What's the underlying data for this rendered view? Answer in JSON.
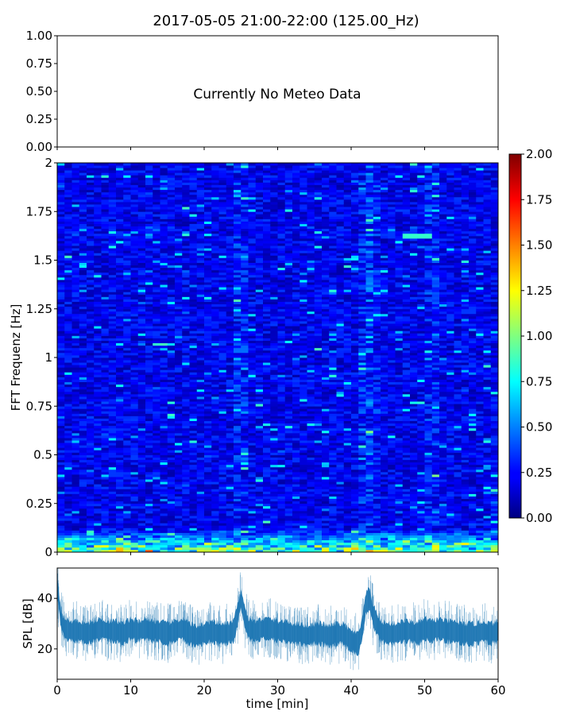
{
  "title": "2017-05-05 21:00-22:00 (125.00_Hz)",
  "chart_data": [
    {
      "type": "line",
      "panel": "meteo",
      "message": "Currently No Meteo Data",
      "ylim": [
        0,
        1
      ],
      "yticks": [
        "0.00",
        "0.25",
        "0.50",
        "0.75",
        "1.00"
      ],
      "xlim": [
        0,
        60
      ],
      "series": []
    },
    {
      "type": "heatmap",
      "panel": "spectrogram",
      "ylabel": "FFT Frequenz [Hz]",
      "xlim": [
        0,
        60
      ],
      "ylim": [
        0,
        2
      ],
      "yticks": [
        "0",
        "0.25",
        "0.5",
        "0.75",
        "1",
        "1.25",
        "1.5",
        "1.75",
        "2"
      ],
      "colorbar": {
        "range": [
          0,
          2
        ],
        "ticks": [
          "0.00",
          "0.25",
          "0.50",
          "0.75",
          "1.00",
          "1.25",
          "1.50",
          "1.75",
          "2.00"
        ],
        "colormap": "jet"
      },
      "features": {
        "background_level": 0.22,
        "low_freq_band_hz": [
          0,
          0.12
        ],
        "low_freq_level": 0.9,
        "bright_time_minutes": [
          25,
          42,
          43,
          51
        ],
        "bright_line": {
          "t_start": 47,
          "t_end": 51,
          "freq": 1.63,
          "value": 0.85
        }
      }
    },
    {
      "type": "line",
      "panel": "spl",
      "ylabel": "SPL [dB]",
      "xlabel": "time [min]",
      "xlim": [
        0,
        60
      ],
      "ylim": [
        8,
        52
      ],
      "yticks": [
        "20",
        "40"
      ],
      "xticks": [
        "0",
        "10",
        "20",
        "30",
        "40",
        "50",
        "60"
      ],
      "color": "#1f77b4",
      "series": [
        {
          "x": [
            0,
            0.5,
            1,
            2,
            3,
            4,
            5,
            6,
            7,
            8,
            9,
            10,
            11,
            12,
            13,
            14,
            15,
            16,
            17,
            18,
            19,
            20,
            21,
            22,
            23,
            24,
            24.5,
            25,
            25.5,
            26,
            27,
            28,
            29,
            30,
            31,
            32,
            33,
            34,
            35,
            36,
            37,
            38,
            39,
            40,
            41,
            41.5,
            42,
            42.5,
            43,
            44,
            45,
            46,
            47,
            48,
            49,
            50,
            51,
            52,
            53,
            54,
            55,
            56,
            57,
            58,
            59,
            60
          ],
          "values": [
            45,
            32,
            28,
            27,
            27,
            26,
            27,
            28,
            27,
            27,
            26,
            28,
            27,
            28,
            27,
            27,
            26,
            27,
            28,
            26,
            25,
            26,
            27,
            26,
            26,
            27,
            33,
            40,
            33,
            28,
            27,
            28,
            28,
            27,
            27,
            26,
            26,
            25,
            26,
            26,
            25,
            26,
            26,
            23,
            22,
            28,
            38,
            40,
            33,
            27,
            26,
            26,
            27,
            27,
            26,
            28,
            27,
            28,
            27,
            27,
            26,
            26,
            26,
            27,
            26,
            27
          ]
        }
      ]
    }
  ]
}
